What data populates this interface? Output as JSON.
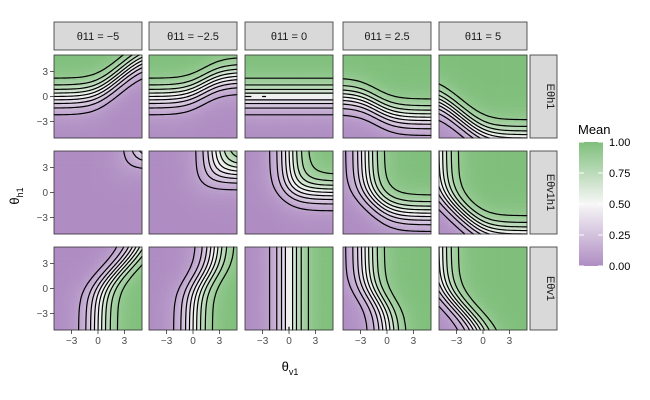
{
  "chart_data": {
    "type": "heatmap",
    "title": "",
    "xlabel": "θ",
    "xlabel_sub": "v1",
    "ylabel": "θ",
    "ylabel_sub": "h1",
    "xlim": [
      -5,
      5
    ],
    "ylim": [
      -5,
      5
    ],
    "x_ticks": [
      "-3",
      "0",
      "3"
    ],
    "y_ticks": [
      "3",
      "0",
      "-3"
    ],
    "grid": false,
    "legend_placement": "right",
    "legend": {
      "title": "Mean",
      "range": [
        0,
        1
      ],
      "ticks": [
        "1.00",
        "0.75",
        "0.50",
        "0.25",
        "0.00"
      ],
      "low_color": "#af8dc3",
      "mid_color": "#f7f7f7",
      "high_color": "#7fbf7b"
    },
    "contour_levels": [
      0.1,
      0.2,
      0.3,
      0.4,
      0.5,
      0.6,
      0.7,
      0.8,
      0.9
    ],
    "contour_color": "#000000",
    "columns": [
      {
        "label": "θ11 = −5",
        "value": -5
      },
      {
        "label": "θ11 = −2.5",
        "value": -2.5
      },
      {
        "label": "θ11 = 0",
        "value": 0
      },
      {
        "label": "θ11 = 2.5",
        "value": 2.5
      },
      {
        "label": "θ11 = 5",
        "value": 5
      }
    ],
    "rows": [
      {
        "label": "Eθh1",
        "id": "h"
      },
      {
        "label": "Eθv1h1",
        "id": "vh"
      },
      {
        "label": "Eθv1",
        "id": "v"
      }
    ]
  }
}
